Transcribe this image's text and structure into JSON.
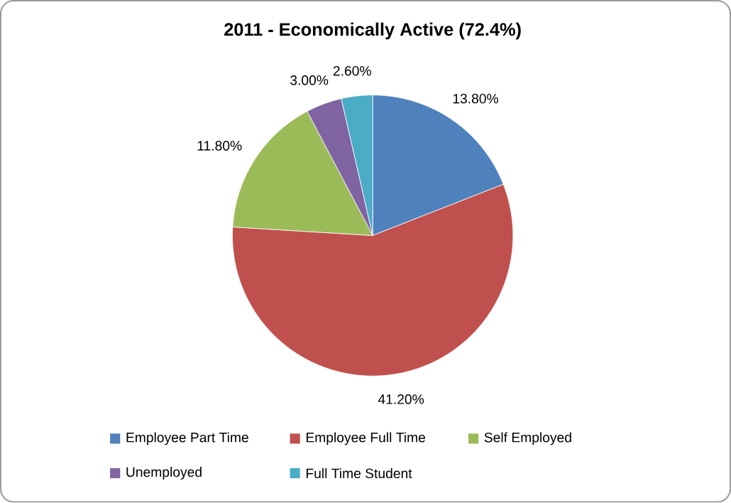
{
  "chart_data": {
    "type": "pie",
    "title": "2011 - Economically Active (72.4%)",
    "categories": [
      "Employee Part Time",
      "Employee Full Time",
      "Self Employed",
      "Unemployed",
      "Full Time Student"
    ],
    "values": [
      13.8,
      41.2,
      11.8,
      3.0,
      2.6
    ],
    "value_labels": [
      "13.80%",
      "41.20%",
      "11.80%",
      "3.00%",
      "2.60%"
    ],
    "colors": [
      "#4f81bd",
      "#c0504d",
      "#9bbb59",
      "#8064a2",
      "#4bacc6"
    ],
    "legend": "bottom"
  }
}
